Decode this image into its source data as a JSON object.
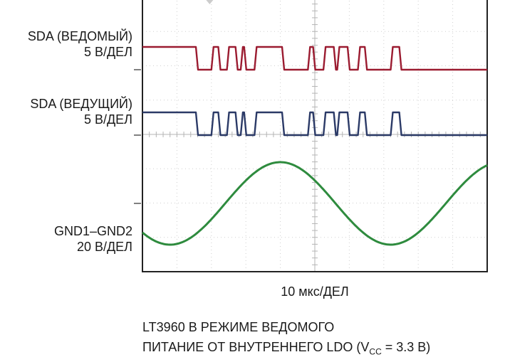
{
  "chart_data": {
    "type": "line",
    "title": "",
    "xlabel": "10 мкс/ДЕЛ",
    "divisions": {
      "x": 10,
      "y": 8
    },
    "grid": true,
    "series": [
      {
        "name": "SDA (ВЕДОМЫЙ)",
        "scale": "5 В/ДЕЛ",
        "color": "#9b1b30",
        "kind": "digital",
        "transitions": [
          0,
          1.55,
          2.0,
          2.2,
          2.45,
          2.7,
          2.85,
          2.95,
          3.25,
          4.05,
          4.8,
          4.95,
          5.25,
          5.55,
          5.65,
          5.95,
          6.25,
          6.45,
          7.2,
          7.45
        ],
        "start_level": 1
      },
      {
        "name": "SDA (ВЕДУЩИЙ)",
        "scale": "5 В/ДЕЛ",
        "color": "#2b3a67",
        "kind": "digital",
        "transitions": [
          0,
          1.55,
          2.0,
          2.2,
          2.45,
          2.7,
          2.85,
          2.95,
          3.25,
          4.05,
          4.8,
          4.95,
          5.25,
          5.55,
          5.65,
          5.95,
          6.25,
          6.45,
          7.2,
          7.45
        ],
        "start_level": 1
      },
      {
        "name": "GND1–GND2",
        "scale": "20 В/ДЕЛ",
        "color": "#2e8b3e",
        "kind": "sine",
        "period_div": 6.4,
        "peak_div": 4.0
      }
    ]
  },
  "labels": {
    "slave": [
      "SDA (ВЕДОМЫЙ)",
      "5 В/ДЕЛ"
    ],
    "master": [
      "SDA (ВЕДУЩИЙ)",
      "5 В/ДЕЛ"
    ],
    "gnd": [
      "GND1–GND2",
      "20 В/ДЕЛ"
    ]
  },
  "caption": {
    "line1": "LT3960 В РЕЖИМЕ ВЕДОМОГО",
    "line2_pre": "ПИТАНИЕ ОТ ВНУТРЕННЕГО LDO (V",
    "line2_sub": "CC",
    "line2_post": " = 3.3 В)"
  }
}
